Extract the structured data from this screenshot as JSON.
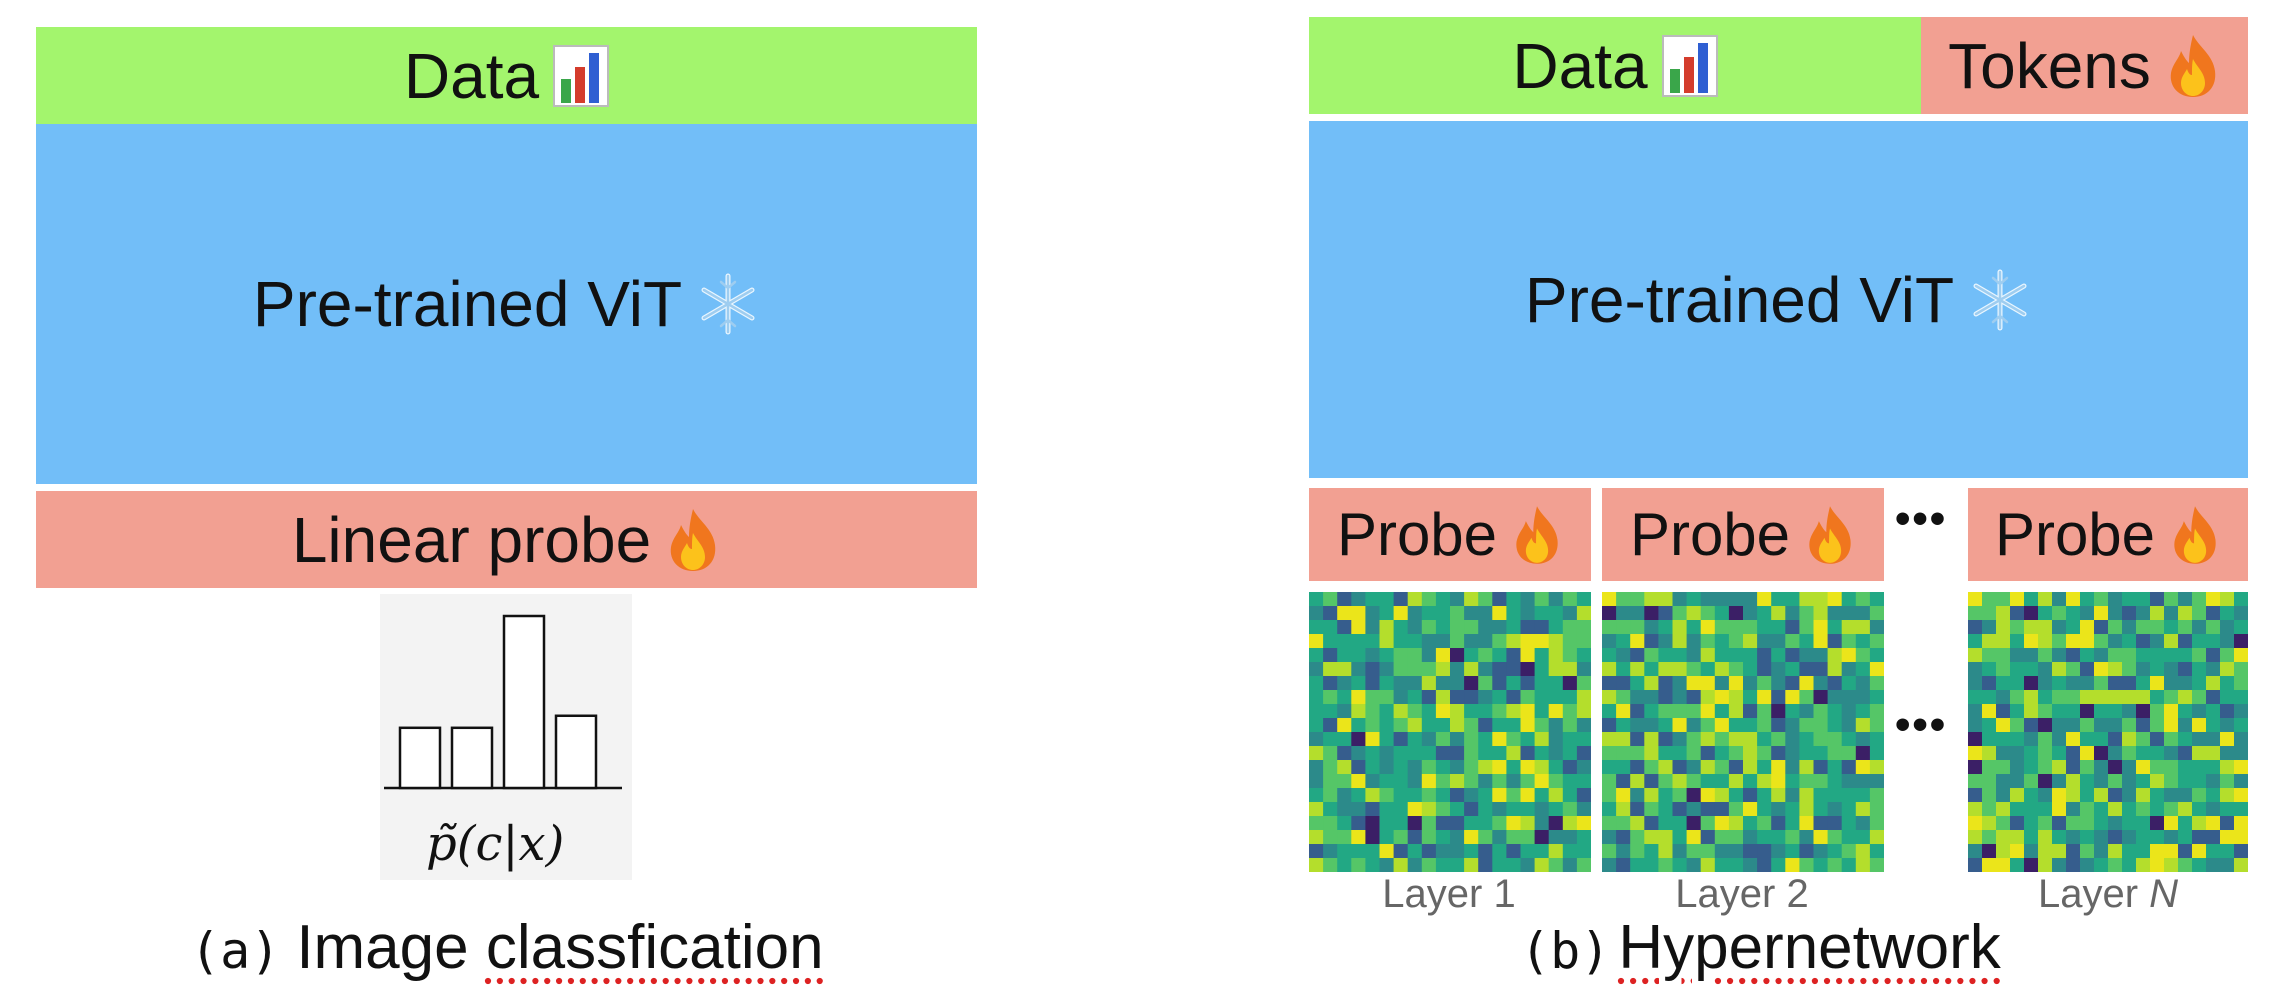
{
  "panel_a": {
    "data_label": "Data",
    "data_icon": "bar-chart-icon",
    "vit_label": "Pre-trained ViT",
    "vit_icon": "snowflake-icon",
    "probe_label": "Linear probe",
    "probe_icon": "fire-icon",
    "histogram_formula": "p̃(c|x)",
    "histogram_values": [
      0.35,
      0.35,
      1.0,
      0.42
    ],
    "caption_tag": "(a)",
    "caption_text_1": "Image ",
    "caption_text_2": "classfication"
  },
  "panel_b": {
    "data_label": "Data",
    "data_icon": "bar-chart-icon",
    "tokens_label": "Tokens",
    "tokens_icon": "fire-icon",
    "vit_label": "Pre-trained ViT",
    "vit_icon": "snowflake-icon",
    "probe_label": "Probe",
    "probe_icon": "fire-icon",
    "ellipsis": "•••",
    "layer_1": "Layer 1",
    "layer_2": "Layer 2",
    "layer_n_prefix": "Layer ",
    "layer_n_var": "N",
    "caption_tag": "(b)",
    "caption_text": "Hypernetwork"
  },
  "colors": {
    "data": "#a3f56d",
    "vit": "#72bef8",
    "probe": "#f2a092",
    "heatmap_palette": [
      "#3b1f66",
      "#365d8d",
      "#2c8a8a",
      "#22a884",
      "#55c667",
      "#b4de2c",
      "#ebe51a"
    ]
  }
}
